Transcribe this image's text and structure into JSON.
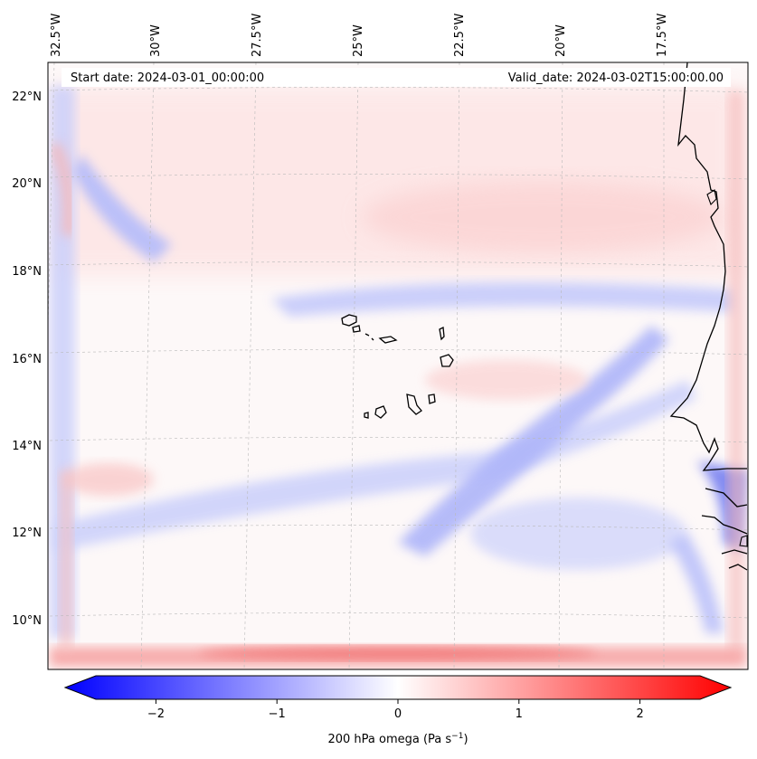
{
  "header": {
    "start_date": "Start date: 2024-03-01_00:00:00",
    "valid_date": "Valid_date: 2024-03-02T15:00:00.00"
  },
  "longitudes": [
    {
      "value": -32.5,
      "label": "32.5°W"
    },
    {
      "value": -30.0,
      "label": "30°W"
    },
    {
      "value": -27.5,
      "label": "27.5°W"
    },
    {
      "value": -25.0,
      "label": "25°W"
    },
    {
      "value": -22.5,
      "label": "22.5°W"
    },
    {
      "value": -20.0,
      "label": "20°W"
    },
    {
      "value": -17.5,
      "label": "17.5°W"
    }
  ],
  "latitudes": [
    {
      "value": 22,
      "label": "22°N"
    },
    {
      "value": 20,
      "label": "20°N"
    },
    {
      "value": 18,
      "label": "18°N"
    },
    {
      "value": 16,
      "label": "16°N"
    },
    {
      "value": 14,
      "label": "14°N"
    },
    {
      "value": 12,
      "label": "12°N"
    },
    {
      "value": 10,
      "label": "10°N"
    }
  ],
  "colorbar": {
    "label": "200 hPa omega (Pa s",
    "label_unit_sup": "−1",
    "label_close": ")",
    "range": [
      -2.6,
      2.6
    ],
    "ticks": [
      {
        "value": -2,
        "label": "−2"
      },
      {
        "value": -1,
        "label": "−1"
      },
      {
        "value": 0,
        "label": "0"
      },
      {
        "value": 1,
        "label": "1"
      },
      {
        "value": 2,
        "label": "2"
      }
    ],
    "colors": {
      "low": "#0000ff",
      "mid": "#ffffff",
      "high": "#ff0000"
    }
  },
  "field": {
    "variable": "200 hPa omega",
    "features": [
      {
        "name": "southern-boundary-band",
        "value": 1.6
      },
      {
        "name": "western-boundary-band",
        "value": -0.5
      },
      {
        "name": "northern-positive-zone",
        "value": 0.3
      },
      {
        "name": "cross-domain-descent-band",
        "value": -0.6
      },
      {
        "name": "sw-ne-ascent-band",
        "value": -0.8
      },
      {
        "name": "coastal-ascent",
        "value": -1.2
      }
    ]
  },
  "islands": [
    "Santo Antão",
    "São Vicente",
    "São Nicolau",
    "Sal",
    "Boa Vista",
    "Maio",
    "Santiago",
    "Fogo",
    "Brava"
  ]
}
